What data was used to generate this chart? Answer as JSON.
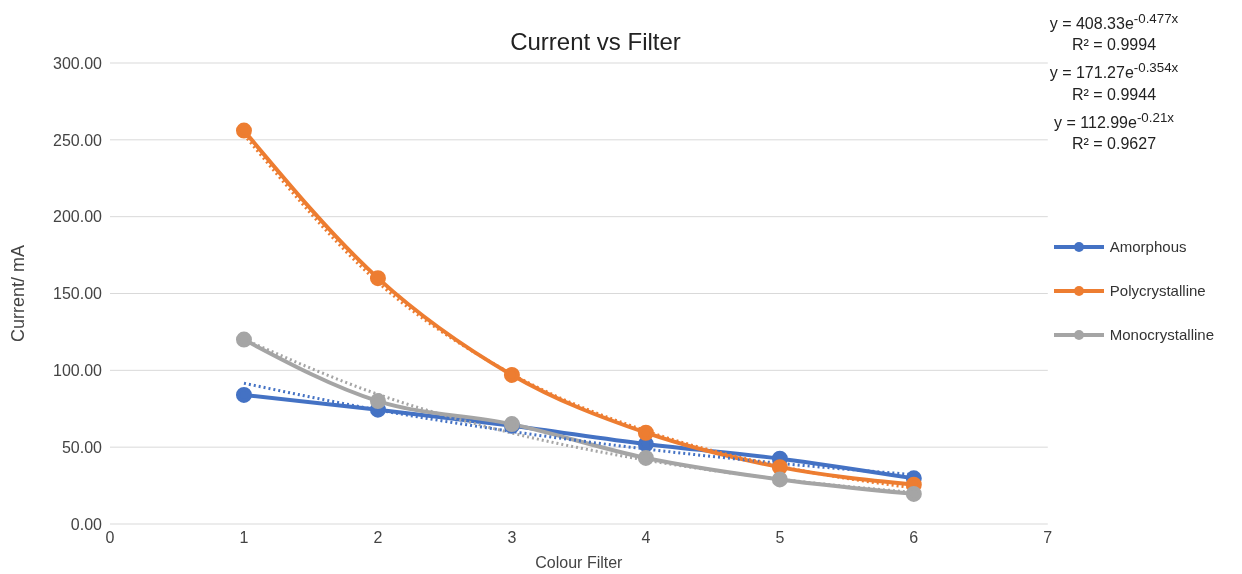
{
  "chart_data": {
    "type": "line",
    "title": "Current vs Filter",
    "xlabel": "Colour Filter",
    "ylabel": "Current/ mA",
    "x": [
      1,
      2,
      3,
      4,
      5,
      6
    ],
    "series": [
      {
        "name": "Amorphous",
        "color": "#4472c4",
        "values": [
          84,
          74.4,
          64,
          52,
          42.5,
          29.7
        ]
      },
      {
        "name": "Polycrystalline",
        "color": "#ed7d31",
        "values": [
          256,
          160,
          97,
          59.4,
          37,
          25.6
        ]
      },
      {
        "name": "Monocrystalline",
        "color": "#a5a5a5",
        "values": [
          120,
          80,
          65,
          43,
          29,
          19.6
        ]
      },
      {
        "type": "line",
        "color": "#4472c4",
        "values": [
          91.6,
          74.2,
          60.2,
          48.8,
          39.5,
          32.1
        ],
        "marker": "none",
        "line_style": "dotted"
      },
      {
        "type": "line",
        "color": "#ed7d31",
        "values": [
          253.4,
          157.3,
          97.6,
          60.6,
          37.6,
          23.4
        ],
        "marker": "none",
        "line_style": "dotted"
      },
      {
        "type": "line",
        "color": "#a5a5a5",
        "values": [
          120.2,
          84.4,
          59.2,
          41.6,
          29.2,
          20.5
        ],
        "marker": "none",
        "line_style": "dotted"
      }
    ],
    "xlim": [
      0,
      7
    ],
    "xticks": [
      0,
      1,
      2,
      3,
      4,
      5,
      6,
      7
    ],
    "ylim": [
      0,
      300
    ],
    "yticks": [
      {
        "value": 0,
        "label": "0.00"
      },
      {
        "value": 50,
        "label": "50.00"
      },
      {
        "value": 100,
        "label": "100.00"
      },
      {
        "value": 150,
        "label": "150.00"
      },
      {
        "value": 200,
        "label": "200.00"
      },
      {
        "value": 250,
        "label": "250.00"
      },
      {
        "value": 300,
        "label": "300.00"
      }
    ],
    "grid": "y",
    "legend": "right",
    "line_style": "solid",
    "marker": "circle",
    "annotations": [
      "y = 408.33e$^{-0.477x}$",
      "R² = 0.9994",
      "y = 171.27e$^{-0.354x}$",
      "R² = 0.9944",
      "y = 112.99e$^{-0.21x}$",
      "R² = 0.9627"
    ]
  }
}
